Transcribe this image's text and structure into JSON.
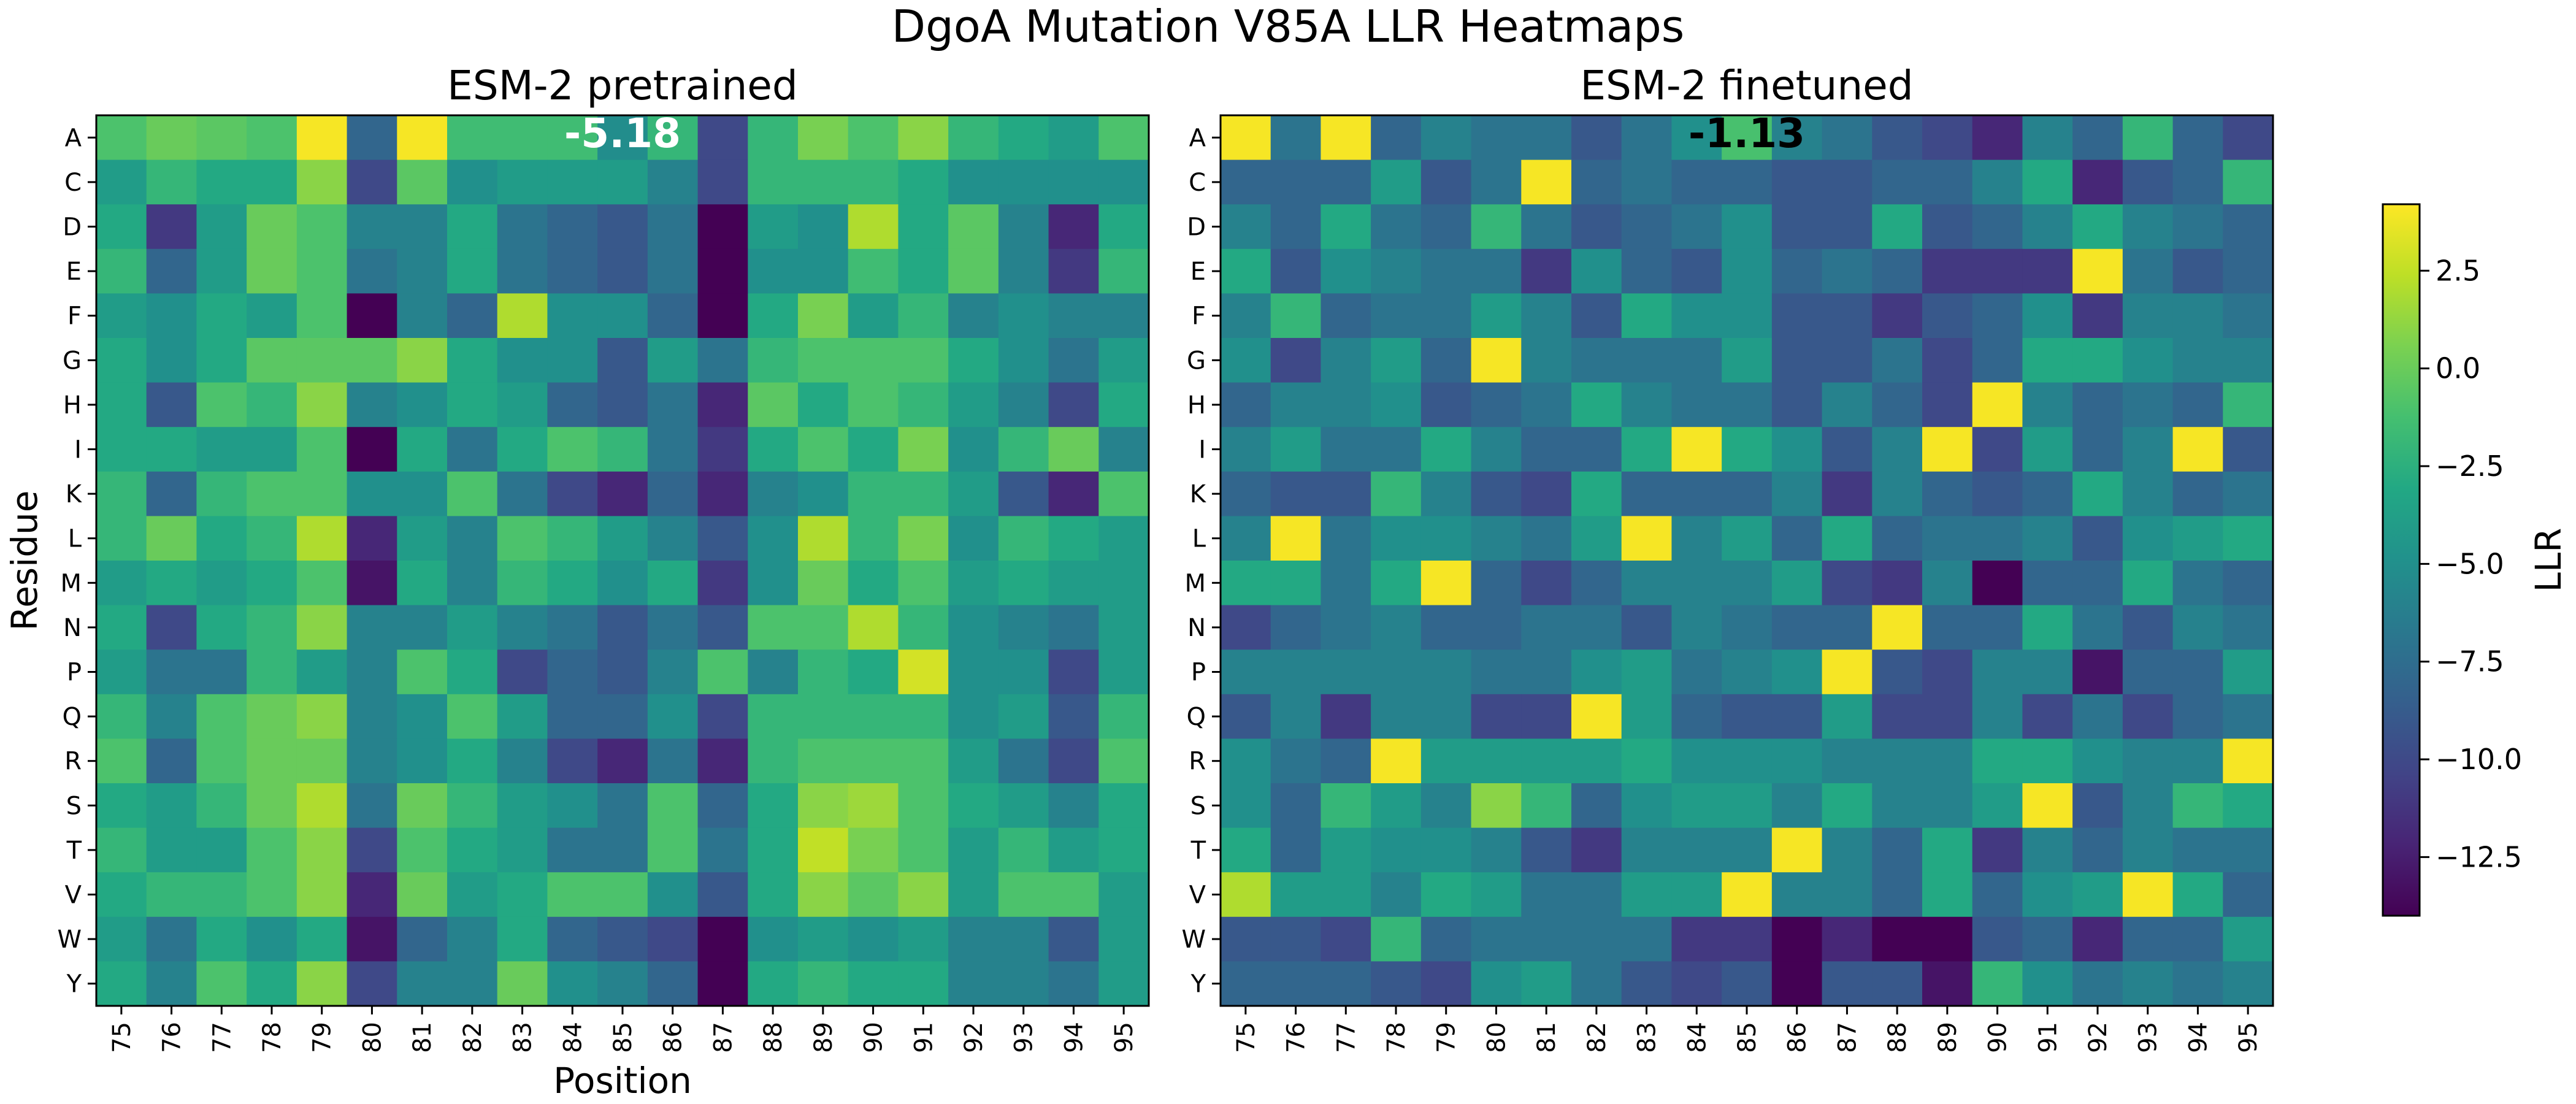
{
  "figure": {
    "title": "DgoA Mutation V85A LLR Heatmaps"
  },
  "colorbar": {
    "label": "LLR",
    "min": -14,
    "max": 4.2,
    "ticks": [
      "2.5",
      "0.0",
      "−2.5",
      "−5.0",
      "−7.5",
      "−10.0",
      "−12.5"
    ],
    "tick_values": [
      2.5,
      0.0,
      -2.5,
      -5.0,
      -7.5,
      -10.0,
      -12.5
    ]
  },
  "chart_data": [
    {
      "type": "heatmap",
      "title": "ESM-2 pretrained",
      "xlabel": "Position",
      "ylabel": "Residue",
      "x": [
        "75",
        "76",
        "77",
        "78",
        "79",
        "80",
        "81",
        "82",
        "83",
        "84",
        "85",
        "86",
        "87",
        "88",
        "89",
        "90",
        "91",
        "92",
        "93",
        "94",
        "95"
      ],
      "y": [
        "A",
        "C",
        "D",
        "E",
        "F",
        "G",
        "H",
        "I",
        "K",
        "L",
        "M",
        "N",
        "P",
        "Q",
        "R",
        "S",
        "T",
        "V",
        "W",
        "Y"
      ],
      "annotation": {
        "text": "-5.18",
        "position": "85",
        "residue": "A",
        "color": "white"
      },
      "values": [
        [
          -1,
          0,
          -0.5,
          -1,
          4,
          -8,
          4,
          -1.5,
          -1.5,
          -1.5,
          -5.18,
          -2,
          -10,
          -2,
          0.5,
          -1,
          1,
          -2,
          -3,
          -4,
          -1
        ],
        [
          -4,
          -2,
          -3,
          -3,
          1,
          -10,
          -0.5,
          -5,
          -4,
          -4,
          -4,
          -6,
          -10,
          -2,
          -2,
          -2,
          -3,
          -5,
          -5,
          -5,
          -5
        ],
        [
          -3,
          -11,
          -4,
          0,
          -1,
          -6,
          -6,
          -3,
          -7,
          -8,
          -9,
          -7,
          -14,
          -4,
          -5,
          2,
          -3,
          -0.5,
          -6,
          -12,
          -3
        ],
        [
          -2,
          -8,
          -4,
          0,
          -1,
          -7,
          -6,
          -3,
          -7,
          -8,
          -9,
          -7,
          -14,
          -5,
          -5,
          -1.5,
          -3,
          -0.5,
          -6,
          -11,
          -2
        ],
        [
          -4,
          -5,
          -3,
          -4,
          -1,
          -14,
          -6,
          -8,
          2,
          -5,
          -5,
          -8,
          -14,
          -3,
          0.5,
          -4,
          -2,
          -6,
          -5,
          -6,
          -6
        ],
        [
          -3,
          -5,
          -3,
          -0.5,
          -0.5,
          -0.5,
          1,
          -3,
          -5,
          -5,
          -9,
          -4,
          -7,
          -2,
          -1,
          -1,
          -1,
          -3,
          -5,
          -7,
          -4
        ],
        [
          -3,
          -9,
          -1,
          -2,
          1,
          -6,
          -5,
          -3,
          -4,
          -8,
          -9,
          -7,
          -12,
          -0.5,
          -3,
          -1,
          -2,
          -4,
          -6,
          -10,
          -3
        ],
        [
          -3,
          -3,
          -4,
          -4,
          -1,
          -14,
          -3,
          -7,
          -3,
          -1,
          -2,
          -7,
          -11,
          -3,
          -1,
          -3,
          0.5,
          -5,
          -2,
          0,
          -6
        ],
        [
          -2,
          -8,
          -2,
          -1,
          -1,
          -5,
          -5,
          -1,
          -7,
          -10,
          -12,
          -8,
          -12,
          -6,
          -5,
          -2,
          -2,
          -4,
          -9,
          -12,
          -1
        ],
        [
          -2,
          0,
          -3,
          -2,
          2,
          -12,
          -4,
          -6,
          -1,
          -2,
          -4,
          -6,
          -9,
          -5,
          2,
          -2,
          0.5,
          -5,
          -2,
          -3,
          -4
        ],
        [
          -4,
          -3,
          -4,
          -3,
          -1,
          -13,
          -3,
          -6,
          -2,
          -3,
          -5,
          -3,
          -11,
          -5,
          0,
          -3,
          -1,
          -4,
          -3,
          -4,
          -4
        ],
        [
          -3,
          -10,
          -3,
          -2,
          1,
          -6,
          -6,
          -4,
          -6,
          -7,
          -9,
          -7,
          -9,
          -1,
          -1,
          2,
          -2,
          -5,
          -6,
          -7,
          -4
        ],
        [
          -4,
          -7,
          -7,
          -2,
          -4,
          -6,
          -1,
          -3,
          -10,
          -8,
          -9,
          -6,
          -1,
          -6,
          -2,
          -3,
          3,
          -5,
          -5,
          -10,
          -4
        ],
        [
          -2,
          -6,
          -1,
          0,
          1,
          -6,
          -5,
          -1,
          -4,
          -8,
          -8,
          -5,
          -10,
          -2,
          -2,
          -2,
          -2,
          -5,
          -4,
          -9,
          -2
        ],
        [
          -1,
          -8,
          -1,
          0,
          0,
          -6,
          -5,
          -3,
          -6,
          -10,
          -12,
          -7,
          -12,
          -2,
          -1,
          -1,
          -1,
          -4,
          -7,
          -10,
          -1
        ],
        [
          -3,
          -4,
          -2,
          0,
          2,
          -7,
          0,
          -2,
          -4,
          -5,
          -7,
          -1,
          -8,
          -3,
          1,
          1.5,
          -1,
          -3,
          -4,
          -6,
          -3
        ],
        [
          -2,
          -4,
          -4,
          -1,
          1,
          -10,
          -1,
          -3,
          -4,
          -7,
          -7,
          -1,
          -7,
          -3,
          2.5,
          0.5,
          -1,
          -4,
          -2,
          -4,
          -3
        ],
        [
          -3,
          -2,
          -2,
          -1,
          1,
          -12,
          0,
          -4,
          -3,
          -1,
          -1,
          -5,
          -9,
          -3,
          1,
          -0.5,
          1,
          -4,
          -1,
          -1,
          -4
        ],
        [
          -4,
          -7,
          -3,
          -5,
          -3,
          -13,
          -8,
          -6,
          -3,
          -8,
          -9,
          -10,
          -14,
          -5,
          -4,
          -5,
          -4,
          -6,
          -6,
          -9,
          -4
        ],
        [
          -3,
          -6,
          -1,
          -3,
          1,
          -10,
          -6,
          -6,
          0,
          -5,
          -6,
          -8,
          -14,
          -3,
          -2,
          -3,
          -3,
          -6,
          -6,
          -7,
          -4
        ]
      ]
    },
    {
      "type": "heatmap",
      "title": "ESM-2 finetuned",
      "xlabel": "",
      "ylabel": "",
      "x": [
        "75",
        "76",
        "77",
        "78",
        "79",
        "80",
        "81",
        "82",
        "83",
        "84",
        "85",
        "86",
        "87",
        "88",
        "89",
        "90",
        "91",
        "92",
        "93",
        "94",
        "95"
      ],
      "y": [
        "A",
        "C",
        "D",
        "E",
        "F",
        "G",
        "H",
        "I",
        "K",
        "L",
        "M",
        "N",
        "P",
        "Q",
        "R",
        "S",
        "T",
        "V",
        "W",
        "Y"
      ],
      "annotation": {
        "text": "-1.13",
        "position": "85",
        "residue": "A",
        "color": "black"
      },
      "values": [
        [
          4,
          -7,
          4,
          -8,
          -6,
          -7,
          -7,
          -9,
          -7,
          -5,
          -1.13,
          -6,
          -7,
          -9,
          -10,
          -12,
          -6,
          -8,
          -2,
          -8,
          -10
        ],
        [
          -8,
          -8,
          -8,
          -4,
          -9,
          -7,
          4,
          -8,
          -7,
          -8,
          -8,
          -9,
          -9,
          -8,
          -8,
          -6,
          -3,
          -12,
          -9,
          -8,
          -2
        ],
        [
          -6,
          -8,
          -3,
          -7,
          -8,
          -2,
          -7,
          -9,
          -8,
          -7,
          -5,
          -9,
          -9,
          -3,
          -9,
          -8,
          -6,
          -3,
          -6,
          -7,
          -8
        ],
        [
          -3,
          -9,
          -5,
          -6,
          -7,
          -7,
          -11,
          -5,
          -8,
          -9,
          -5,
          -8,
          -7,
          -8,
          -11,
          -11,
          -11,
          4,
          -7,
          -9,
          -8
        ],
        [
          -6,
          -2,
          -8,
          -7,
          -7,
          -4,
          -6,
          -9,
          -3,
          -5,
          -5,
          -9,
          -9,
          -11,
          -9,
          -8,
          -5,
          -11,
          -6,
          -6,
          -7
        ],
        [
          -5,
          -10,
          -6,
          -4,
          -8,
          4,
          -6,
          -7,
          -7,
          -7,
          -4,
          -9,
          -9,
          -7,
          -10,
          -8,
          -3,
          -3,
          -5,
          -6,
          -6
        ],
        [
          -8,
          -6,
          -6,
          -5,
          -9,
          -8,
          -7,
          -3,
          -6,
          -7,
          -7,
          -9,
          -6,
          -8,
          -10,
          4,
          -6,
          -8,
          -7,
          -8,
          -2
        ],
        [
          -6,
          -4,
          -7,
          -7,
          -3,
          -6,
          -8,
          -8,
          -3,
          4,
          -3,
          -5,
          -9,
          -6,
          4,
          -10,
          -4,
          -8,
          -6,
          4,
          -9
        ],
        [
          -8,
          -9,
          -9,
          -2,
          -6,
          -9,
          -10,
          -3,
          -8,
          -8,
          -8,
          -6,
          -11,
          -6,
          -8,
          -9,
          -8,
          -3,
          -6,
          -8,
          -7
        ],
        [
          -6,
          4,
          -7,
          -5,
          -5,
          -6,
          -7,
          -4,
          4,
          -6,
          -4,
          -8,
          -3,
          -8,
          -7,
          -7,
          -6,
          -9,
          -5,
          -4,
          -3
        ],
        [
          -3,
          -3,
          -7,
          -3,
          4,
          -8,
          -10,
          -8,
          -6,
          -6,
          -6,
          -4,
          -10,
          -11,
          -6,
          -14,
          -8,
          -8,
          -3,
          -7,
          -8
        ],
        [
          -10,
          -8,
          -7,
          -6,
          -8,
          -8,
          -7,
          -7,
          -9,
          -6,
          -7,
          -8,
          -8,
          4,
          -8,
          -8,
          -3,
          -7,
          -9,
          -6,
          -7
        ],
        [
          -6,
          -6,
          -6,
          -6,
          -6,
          -7,
          -7,
          -5,
          -4,
          -7,
          -6,
          -5,
          4,
          -9,
          -10,
          -6,
          -6,
          -13,
          -8,
          -8,
          -4
        ],
        [
          -9,
          -6,
          -11,
          -6,
          -6,
          -10,
          -10,
          4,
          -4,
          -8,
          -9,
          -9,
          -4,
          -10,
          -10,
          -6,
          -10,
          -7,
          -10,
          -8,
          -7
        ],
        [
          -5,
          -7,
          -8,
          4,
          -4,
          -4,
          -4,
          -4,
          -3,
          -5,
          -5,
          -5,
          -6,
          -6,
          -6,
          -3,
          -3,
          -5,
          -6,
          -6,
          4
        ],
        [
          -5,
          -8,
          -2,
          -4,
          -6,
          1,
          -2,
          -8,
          -5,
          -4,
          -4,
          -6,
          -3,
          -6,
          -6,
          -4,
          4,
          -9,
          -6,
          -2,
          -3
        ],
        [
          -3,
          -8,
          -4,
          -5,
          -5,
          -6,
          -9,
          -11,
          -6,
          -6,
          -6,
          4,
          -6,
          -8,
          -3,
          -11,
          -6,
          -8,
          -6,
          -7,
          -7
        ],
        [
          2,
          -4,
          -4,
          -6,
          -3,
          -4,
          -7,
          -7,
          -4,
          -4,
          4,
          -6,
          -6,
          -8,
          -3,
          -8,
          -5,
          -4,
          4,
          -3,
          -8
        ],
        [
          -9,
          -9,
          -10,
          -2,
          -8,
          -7,
          -7,
          -7,
          -7,
          -11,
          -11,
          -14,
          -12,
          -14,
          -14,
          -9,
          -8,
          -12,
          -8,
          -8,
          -4
        ],
        [
          -8,
          -8,
          -8,
          -9,
          -10,
          -5,
          -4,
          -7,
          -9,
          -10,
          -9,
          -14,
          -9,
          -9,
          -13,
          -2,
          -5,
          -7,
          -6,
          -7,
          -6
        ]
      ]
    }
  ]
}
